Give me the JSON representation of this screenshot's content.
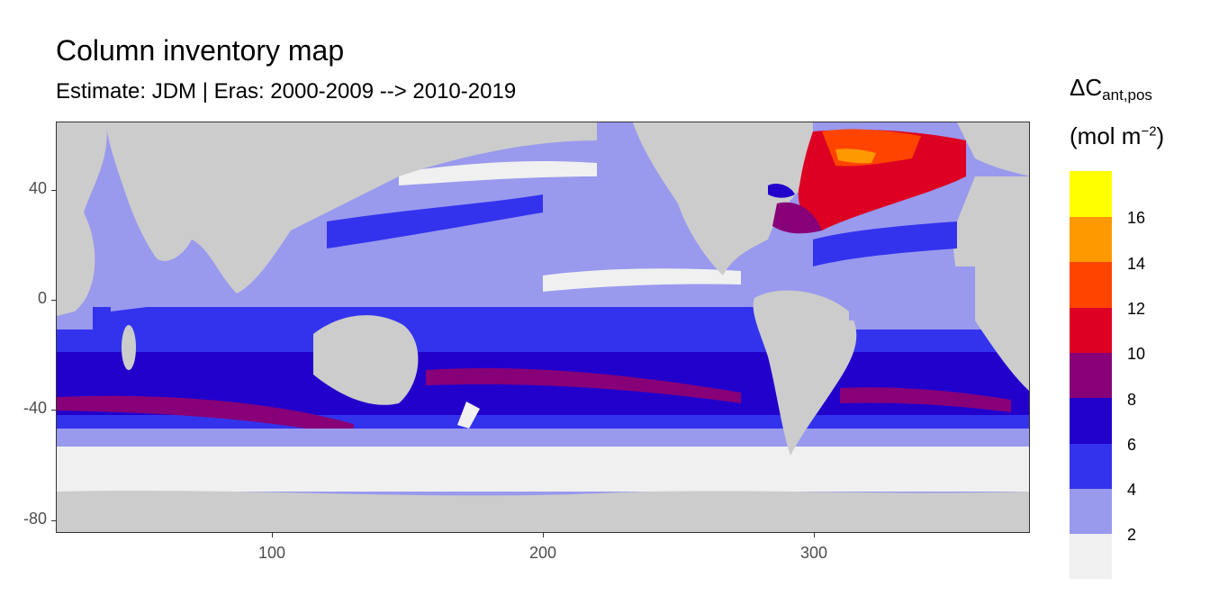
{
  "title": "Column inventory map",
  "subtitle": "Estimate: JDM  | Eras: 2000-2009 --> 2010-2019",
  "legend": {
    "title_main": "ΔC",
    "title_sub": "ant,pos",
    "unit_base": "(mol m",
    "unit_exp": "−2",
    "unit_close": ")",
    "breaks": [
      "2",
      "4",
      "6",
      "8",
      "10",
      "12",
      "14",
      "16"
    ],
    "colors": [
      "#f0f0f0",
      "#9999ee",
      "#3333ee",
      "#2200cc",
      "#880077",
      "#dd0022",
      "#ff4400",
      "#ff9900",
      "#ffff00"
    ]
  },
  "axes": {
    "x_ticks": [
      "100",
      "200",
      "300"
    ],
    "y_ticks": [
      "40",
      "0",
      "-40",
      "-80"
    ]
  },
  "colors": {
    "land": "#cccccc",
    "panel_border": "#333333"
  }
}
